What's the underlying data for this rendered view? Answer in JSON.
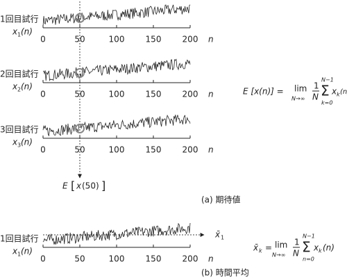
{
  "panel_a": {
    "trials": [
      {
        "label": "1回目試行",
        "signal": "x",
        "sub": "1",
        "arg": "(n)"
      },
      {
        "label": "2回目試行",
        "signal": "x",
        "sub": "2",
        "arg": "(n)"
      },
      {
        "label": "3回目試行",
        "signal": "x",
        "sub": "3",
        "arg": "(n)"
      }
    ],
    "ticks": [
      0,
      50,
      100,
      150,
      200
    ],
    "axis_name": "n",
    "ensemble_label": {
      "op": "E",
      "open": "[",
      "var": "x",
      "arg": "(50)",
      "close": "]"
    },
    "formula": {
      "lhs": "E [x(n)] =",
      "lim": "lim",
      "lim_sub": "N→∞",
      "num": "1",
      "den": "N",
      "sum": "Σ",
      "sum_top": "N−1",
      "sum_bot": "k=0",
      "term": "x",
      "term_sub": "k",
      "term_arg": "(n)"
    },
    "caption": "(a)  期待値"
  },
  "panel_b": {
    "trial": {
      "label": "1回目試行",
      "signal": "x",
      "sub": "1",
      "arg": "(n)"
    },
    "ticks": [
      0,
      50,
      100,
      150,
      200
    ],
    "axis_name": "n",
    "mean_label": {
      "var": "x̄",
      "sub": "1"
    },
    "formula": {
      "lhs": "x̄",
      "lhs_sub": "k",
      "eq": "=",
      "lim": "lim",
      "lim_sub": "N→∞",
      "num": "1",
      "den": "N",
      "sum": "Σ",
      "sum_top": "N−1",
      "sum_bot": "n=0",
      "term": "x",
      "term_sub": "k",
      "term_arg": "(n)"
    },
    "caption": "(b)  時間平均"
  }
}
